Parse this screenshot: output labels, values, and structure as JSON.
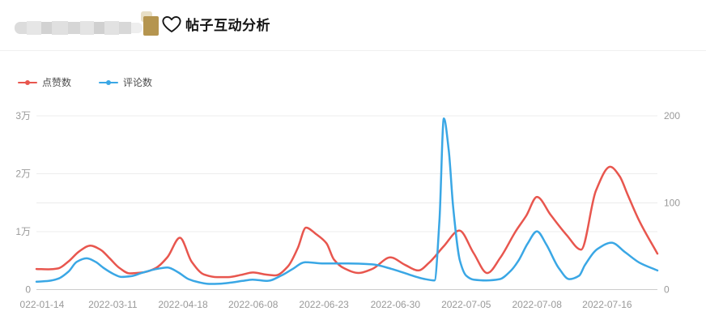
{
  "header": {
    "title": "帖子互动分析",
    "heart_icon": "heart-outline"
  },
  "legend": [
    {
      "label": "点赞数",
      "color": "#e8564e"
    },
    {
      "label": "评论数",
      "color": "#3aa7e5"
    }
  ],
  "colors": {
    "likes": "#e8564e",
    "comments": "#3aa7e5",
    "grid": "#ececec",
    "axis_line": "#cccccc",
    "tick_text": "#999999",
    "badge_gold": "#b5954f"
  },
  "chart_data": {
    "type": "line",
    "smooth": true,
    "grid": true,
    "legend_position": "top-left",
    "title": "帖子互动分析",
    "x_ticks": [
      {
        "label": "022-01-14",
        "f": 0.009
      },
      {
        "label": "2022-03-11",
        "f": 0.123
      },
      {
        "label": "2022-04-18",
        "f": 0.236
      },
      {
        "label": "2022-06-08",
        "f": 0.349
      },
      {
        "label": "2022-06-23",
        "f": 0.463
      },
      {
        "label": "2022-06-30",
        "f": 0.578
      },
      {
        "label": "2022-07-05",
        "f": 0.692
      },
      {
        "label": "2022-07-08",
        "f": 0.806
      },
      {
        "label": "2022-07-16",
        "f": 0.919
      }
    ],
    "left_axis": {
      "name": "点赞数",
      "max": 30000,
      "ticks": [
        {
          "v": 0,
          "label": "0"
        },
        {
          "v": 10000,
          "label": "1万"
        },
        {
          "v": 20000,
          "label": "2万"
        },
        {
          "v": 30000,
          "label": "3万"
        }
      ]
    },
    "right_axis": {
      "name": "评论数",
      "max": 200,
      "ticks": [
        {
          "v": 0,
          "label": "0"
        },
        {
          "v": 100,
          "label": "100"
        },
        {
          "v": 200,
          "label": "200"
        }
      ]
    },
    "series": [
      {
        "name": "点赞数",
        "axis": "left",
        "color": "#e8564e",
        "points": [
          [
            0.0,
            3550
          ],
          [
            0.02,
            3500
          ],
          [
            0.035,
            3650
          ],
          [
            0.052,
            4900
          ],
          [
            0.069,
            6600
          ],
          [
            0.087,
            7600
          ],
          [
            0.103,
            6900
          ],
          [
            0.117,
            5500
          ],
          [
            0.134,
            3700
          ],
          [
            0.15,
            2800
          ],
          [
            0.173,
            3000
          ],
          [
            0.192,
            3700
          ],
          [
            0.211,
            5600
          ],
          [
            0.231,
            8950
          ],
          [
            0.25,
            4800
          ],
          [
            0.27,
            2600
          ],
          [
            0.291,
            2150
          ],
          [
            0.309,
            2150
          ],
          [
            0.33,
            2550
          ],
          [
            0.349,
            2950
          ],
          [
            0.369,
            2600
          ],
          [
            0.385,
            2450
          ],
          [
            0.405,
            4000
          ],
          [
            0.421,
            7200
          ],
          [
            0.434,
            10700
          ],
          [
            0.45,
            9600
          ],
          [
            0.467,
            8000
          ],
          [
            0.479,
            5200
          ],
          [
            0.495,
            3700
          ],
          [
            0.519,
            2870
          ],
          [
            0.541,
            3570
          ],
          [
            0.57,
            5550
          ],
          [
            0.593,
            4300
          ],
          [
            0.615,
            3300
          ],
          [
            0.632,
            4600
          ],
          [
            0.656,
            7500
          ],
          [
            0.681,
            10200
          ],
          [
            0.704,
            6300
          ],
          [
            0.726,
            2850
          ],
          [
            0.747,
            5500
          ],
          [
            0.772,
            10100
          ],
          [
            0.789,
            12800
          ],
          [
            0.806,
            16000
          ],
          [
            0.828,
            12900
          ],
          [
            0.854,
            9400
          ],
          [
            0.877,
            6900
          ],
          [
            0.901,
            17100
          ],
          [
            0.924,
            21200
          ],
          [
            0.939,
            19600
          ],
          [
            0.952,
            16400
          ],
          [
            0.971,
            11800
          ],
          [
            1.0,
            6200
          ]
        ]
      },
      {
        "name": "评论数",
        "axis": "right",
        "color": "#3aa7e5",
        "points": [
          [
            0.0,
            9
          ],
          [
            0.02,
            10
          ],
          [
            0.035,
            12.5
          ],
          [
            0.052,
            21
          ],
          [
            0.065,
            32
          ],
          [
            0.081,
            36
          ],
          [
            0.095,
            32
          ],
          [
            0.108,
            25
          ],
          [
            0.124,
            18
          ],
          [
            0.137,
            14.5
          ],
          [
            0.153,
            15.5
          ],
          [
            0.169,
            19
          ],
          [
            0.189,
            23
          ],
          [
            0.211,
            25.5
          ],
          [
            0.228,
            20
          ],
          [
            0.245,
            12
          ],
          [
            0.261,
            8.5
          ],
          [
            0.278,
            6.5
          ],
          [
            0.296,
            6.8
          ],
          [
            0.313,
            8
          ],
          [
            0.332,
            10
          ],
          [
            0.348,
            11.5
          ],
          [
            0.372,
            10
          ],
          [
            0.394,
            16
          ],
          [
            0.411,
            23
          ],
          [
            0.433,
            31.5
          ],
          [
            0.463,
            30
          ],
          [
            0.502,
            30
          ],
          [
            0.541,
            29
          ],
          [
            0.571,
            24
          ],
          [
            0.593,
            19
          ],
          [
            0.61,
            15
          ],
          [
            0.623,
            12.5
          ],
          [
            0.641,
            10.5
          ],
          [
            0.649,
            80
          ],
          [
            0.656,
            197
          ],
          [
            0.664,
            160
          ],
          [
            0.671,
            95
          ],
          [
            0.682,
            33
          ],
          [
            0.692,
            16
          ],
          [
            0.704,
            11.5
          ],
          [
            0.724,
            10.5
          ],
          [
            0.746,
            12
          ],
          [
            0.763,
            21
          ],
          [
            0.776,
            33
          ],
          [
            0.791,
            53
          ],
          [
            0.806,
            67
          ],
          [
            0.821,
            52
          ],
          [
            0.841,
            25
          ],
          [
            0.858,
            12
          ],
          [
            0.874,
            16
          ],
          [
            0.883,
            28
          ],
          [
            0.904,
            47
          ],
          [
            0.926,
            54
          ],
          [
            0.948,
            43
          ],
          [
            0.971,
            31
          ],
          [
            1.0,
            22
          ]
        ]
      }
    ]
  }
}
